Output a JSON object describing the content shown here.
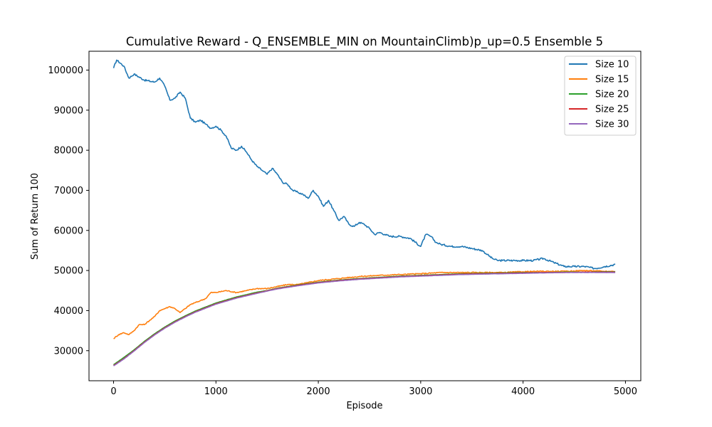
{
  "chart_data": {
    "type": "line",
    "title": "Cumulative Reward - Q_ENSEMBLE_MIN on MountainClimb)p_up=0.5 Ensemble 5",
    "xlabel": "Episode",
    "ylabel": "Sum of Return 100",
    "xlim": [
      -240,
      5150
    ],
    "ylim": [
      22500,
      104700
    ],
    "xticks": [
      0,
      1000,
      2000,
      3000,
      4000,
      5000
    ],
    "yticks": [
      30000,
      40000,
      50000,
      60000,
      70000,
      80000,
      90000,
      100000
    ],
    "xtick_labels": [
      "0",
      "1000",
      "2000",
      "3000",
      "4000",
      "5000"
    ],
    "ytick_labels": [
      "30000",
      "40000",
      "50000",
      "60000",
      "70000",
      "80000",
      "90000",
      "100000"
    ],
    "grid": false,
    "legend_position": "top-right",
    "series": [
      {
        "name": "Size 10",
        "color": "#1f77b4",
        "x": [
          0,
          30,
          100,
          150,
          200,
          300,
          400,
          450,
          500,
          550,
          600,
          650,
          700,
          750,
          800,
          850,
          900,
          950,
          1000,
          1050,
          1100,
          1150,
          1200,
          1250,
          1300,
          1350,
          1400,
          1450,
          1500,
          1550,
          1600,
          1650,
          1700,
          1750,
          1800,
          1850,
          1900,
          1950,
          2000,
          2050,
          2100,
          2150,
          2200,
          2250,
          2300,
          2350,
          2400,
          2450,
          2500,
          2550,
          2600,
          2650,
          2700,
          2800,
          2900,
          3000,
          3050,
          3100,
          3150,
          3200,
          3300,
          3400,
          3500,
          3600,
          3650,
          3700,
          3750,
          3800,
          3900,
          4000,
          4100,
          4200,
          4300,
          4400,
          4500,
          4600,
          4700,
          4800,
          4900
        ],
        "y": [
          100500,
          102500,
          101000,
          98000,
          99000,
          97500,
          97000,
          98000,
          96000,
          92500,
          93000,
          94500,
          93000,
          88000,
          87000,
          87500,
          86500,
          85500,
          86000,
          85000,
          83500,
          80500,
          80000,
          81000,
          79500,
          77500,
          76000,
          75000,
          74000,
          75500,
          74000,
          72000,
          71500,
          70000,
          69500,
          69000,
          68000,
          70000,
          68500,
          66000,
          67500,
          65000,
          62500,
          63500,
          61500,
          61000,
          62000,
          61500,
          60500,
          59000,
          59500,
          59000,
          58500,
          58500,
          58000,
          56000,
          59000,
          58500,
          57000,
          56500,
          56000,
          56000,
          55500,
          55000,
          54000,
          53000,
          52500,
          52500,
          52500,
          52500,
          52500,
          53000,
          52000,
          51000,
          51000,
          51000,
          50500,
          51000,
          51500
        ]
      },
      {
        "name": "Size 15",
        "color": "#ff7f0e",
        "x": [
          0,
          50,
          100,
          150,
          200,
          250,
          300,
          350,
          400,
          450,
          500,
          550,
          600,
          650,
          700,
          750,
          800,
          850,
          900,
          950,
          1000,
          1100,
          1200,
          1300,
          1400,
          1500,
          1600,
          1700,
          1800,
          1900,
          2000,
          2200,
          2400,
          2600,
          2800,
          3000,
          3200,
          3400,
          3600,
          3800,
          4000,
          4200,
          4400,
          4600,
          4800,
          4900
        ],
        "y": [
          33000,
          34000,
          34500,
          34000,
          35000,
          36500,
          36500,
          37500,
          38500,
          40000,
          40500,
          41000,
          40500,
          39500,
          40500,
          41500,
          42000,
          42500,
          43000,
          44500,
          44500,
          45000,
          44500,
          45000,
          45500,
          45500,
          46000,
          46500,
          46500,
          47000,
          47500,
          48000,
          48500,
          48800,
          49000,
          49200,
          49500,
          49500,
          49500,
          49500,
          49700,
          49800,
          49800,
          50000,
          49800,
          49800
        ]
      },
      {
        "name": "Size 20",
        "color": "#2ca02c",
        "x": [
          0,
          100,
          200,
          300,
          400,
          500,
          600,
          700,
          800,
          900,
          1000,
          1200,
          1400,
          1500,
          1600,
          1800,
          2000,
          2200,
          2400,
          2600,
          2800,
          3000,
          3200,
          3400,
          3600,
          3800,
          4000,
          4200,
          4400,
          4600,
          4800,
          4900
        ],
        "y": [
          26500,
          28300,
          30200,
          32300,
          34200,
          35900,
          37400,
          38700,
          39900,
          40900,
          41900,
          43400,
          44600,
          45000,
          45600,
          46400,
          47100,
          47600,
          48000,
          48300,
          48600,
          48800,
          49000,
          49200,
          49300,
          49400,
          49500,
          49500,
          49600,
          49600,
          49700,
          49700
        ]
      },
      {
        "name": "Size 25",
        "color": "#d62728",
        "x": [
          0,
          100,
          200,
          300,
          400,
          500,
          600,
          700,
          800,
          900,
          1000,
          1200,
          1400,
          1600,
          1800,
          2000,
          2200,
          2400,
          2600,
          2800,
          3000,
          3200,
          3400,
          3600,
          3800,
          4000,
          4200,
          4400,
          4600,
          4800,
          4900
        ],
        "y": [
          26300,
          28000,
          30000,
          32100,
          34000,
          35700,
          37200,
          38500,
          39700,
          40700,
          41700,
          43200,
          44400,
          45500,
          46300,
          47000,
          47500,
          47900,
          48200,
          48500,
          48700,
          48900,
          49100,
          49200,
          49300,
          49400,
          49500,
          49500,
          49600,
          49600,
          49600
        ]
      },
      {
        "name": "Size 30",
        "color": "#9467bd",
        "x": [
          0,
          100,
          200,
          300,
          400,
          500,
          600,
          700,
          800,
          900,
          1000,
          1200,
          1400,
          1600,
          1800,
          2000,
          2200,
          2400,
          2600,
          2800,
          3000,
          3200,
          3400,
          3600,
          3800,
          4000,
          4200,
          4400,
          4600,
          4800,
          4900
        ],
        "y": [
          26200,
          27900,
          29900,
          32000,
          33900,
          35600,
          37100,
          38400,
          39600,
          40600,
          41600,
          43100,
          44300,
          45400,
          46200,
          46900,
          47400,
          47800,
          48100,
          48400,
          48600,
          48800,
          49000,
          49100,
          49200,
          49300,
          49400,
          49500,
          49500,
          49500,
          49500
        ]
      }
    ]
  }
}
